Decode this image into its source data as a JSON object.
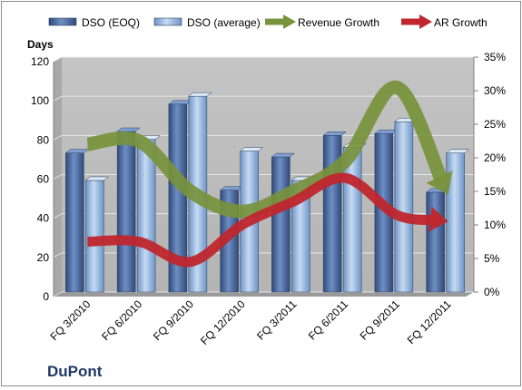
{
  "chart_data": {
    "type": "bar",
    "categories": [
      "FQ 3/2010",
      "FQ 6/2010",
      "FQ 9/2010",
      "FQ 12/2010",
      "FQ 3/2011",
      "FQ 6/2011",
      "FQ 9/2011",
      "FQ 12/2011"
    ],
    "series": [
      {
        "name": "DSO (EOQ)",
        "type": "bar",
        "axis": "left",
        "values": [
          71,
          82,
          96,
          52,
          69,
          80,
          81,
          51
        ],
        "color": "#4f6fa8"
      },
      {
        "name": "DSO (average)",
        "type": "bar",
        "axis": "left",
        "values": [
          57,
          78,
          100,
          72,
          57,
          74,
          87,
          71
        ],
        "color": "#8db3e2"
      },
      {
        "name": "Revenue Growth",
        "type": "line",
        "axis": "right",
        "values": [
          22,
          22.5,
          15,
          12,
          15,
          19.5,
          30.5,
          14.5
        ],
        "color": "#77933c"
      },
      {
        "name": "AR Growth",
        "type": "line",
        "axis": "right",
        "values": [
          7.5,
          7.5,
          4.5,
          10,
          13.5,
          17,
          11.5,
          10.5
        ],
        "color": "#c0262d"
      }
    ],
    "ylabel": "Days",
    "ylim": [
      0,
      120
    ],
    "yticks": [
      "0",
      "20",
      "40",
      "60",
      "80",
      "100",
      "120"
    ],
    "y2lim": [
      0,
      35
    ],
    "y2ticks": [
      "0%",
      "5%",
      "10%",
      "15%",
      "20%",
      "25%",
      "30%",
      "35%"
    ],
    "legend_position": "top",
    "grid": true,
    "plot_background": "#bfbfbf"
  },
  "brand": {
    "name": "DuPont"
  }
}
